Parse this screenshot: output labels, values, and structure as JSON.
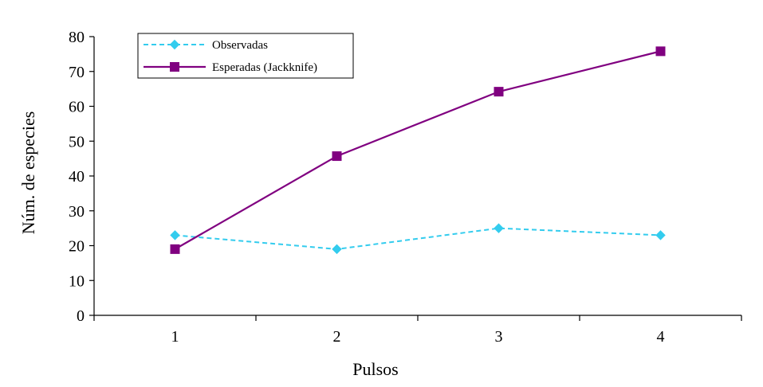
{
  "chart_data": {
    "type": "line",
    "title": "",
    "xlabel": "Pulsos",
    "ylabel": "Núm. de especies",
    "categories": [
      "1",
      "2",
      "3",
      "4"
    ],
    "ylim": [
      0,
      80
    ],
    "yticks": [
      0,
      10,
      20,
      30,
      40,
      50,
      60,
      70,
      80
    ],
    "grid": false,
    "legend_position": "top-left",
    "series": [
      {
        "name": "Observadas",
        "values": [
          23,
          19,
          25,
          23
        ],
        "color": "#33ccee",
        "style": "dashed",
        "marker": "diamond"
      },
      {
        "name": "Esperadas (Jackknife)",
        "values": [
          19,
          45.7,
          64.2,
          75.8
        ],
        "color": "#800080",
        "style": "solid",
        "marker": "square"
      }
    ]
  }
}
